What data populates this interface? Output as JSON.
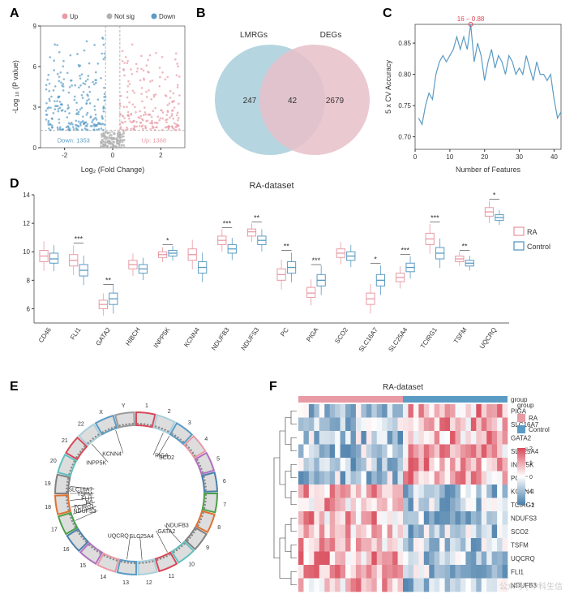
{
  "colors": {
    "up": "#e89aa5",
    "down": "#5a9bc4",
    "notsig": "#b0b0b0",
    "venn_left": "#a8cedb",
    "venn_right": "#e8c0c8",
    "venn_overlap": "#b8a8b8",
    "ra": "#e89aa5",
    "control": "#5a9bc4",
    "line": "#5a9bc4",
    "axis": "#333333",
    "grid": "#e8e8e8",
    "heat_high": "#d94858",
    "heat_mid": "#ffffff",
    "heat_low": "#4a7fab"
  },
  "panelA": {
    "label": "A",
    "xlabel": "Log₂ (Fold Change)",
    "ylabel": "-Log ₁₀ (P value)",
    "legend": [
      "Up",
      "Not sig",
      "Down"
    ],
    "xlim": [
      -3,
      3
    ],
    "ylim": [
      0,
      9
    ],
    "xticks": [
      -2,
      0,
      2
    ],
    "yticks": [
      0,
      3,
      6,
      9
    ],
    "down_label": "Down: 1353",
    "up_label": "Up: 1368",
    "vcut": 0.3,
    "hcut": 1.3
  },
  "panelB": {
    "label": "B",
    "left_title": "LMRGs",
    "right_title": "DEGs",
    "left_only": 247,
    "overlap": 42,
    "right_only": 2679
  },
  "panelC": {
    "label": "C",
    "xlabel": "Number of Features",
    "ylabel": "5 x CV Accuracy",
    "best_label": "16 − 0.88",
    "xlim": [
      0,
      42
    ],
    "ylim": [
      0.68,
      0.88
    ],
    "xticks": [
      0,
      10,
      20,
      30,
      40
    ],
    "yticks": [
      0.7,
      0.75,
      0.8,
      0.85
    ],
    "series_x": [
      1,
      2,
      3,
      4,
      5,
      6,
      7,
      8,
      9,
      10,
      11,
      12,
      13,
      14,
      15,
      16,
      17,
      18,
      19,
      20,
      21,
      22,
      23,
      24,
      25,
      26,
      27,
      28,
      29,
      30,
      31,
      32,
      33,
      34,
      35,
      36,
      37,
      38,
      39,
      40,
      41,
      42
    ],
    "series_y": [
      0.73,
      0.72,
      0.75,
      0.77,
      0.76,
      0.8,
      0.82,
      0.83,
      0.82,
      0.83,
      0.84,
      0.86,
      0.84,
      0.86,
      0.84,
      0.88,
      0.82,
      0.85,
      0.83,
      0.79,
      0.82,
      0.84,
      0.81,
      0.83,
      0.82,
      0.8,
      0.83,
      0.82,
      0.8,
      0.81,
      0.8,
      0.83,
      0.81,
      0.79,
      0.82,
      0.8,
      0.8,
      0.79,
      0.8,
      0.76,
      0.73,
      0.74
    ]
  },
  "panelD": {
    "label": "D",
    "title": "RA-dataset",
    "ylim": [
      5,
      14
    ],
    "yticks": [
      6,
      8,
      10,
      12,
      14
    ],
    "legend": [
      "RA",
      "Control"
    ],
    "genes": [
      "CD46",
      "FLI1",
      "GATA2",
      "HIBCH",
      "INPP5K",
      "KCNN4",
      "NDUFB3",
      "NDUFS3",
      "PC",
      "PIGA",
      "SCO2",
      "SLC16A7",
      "SLC25A4",
      "TCIRG1",
      "TSFM",
      "UQCRQ"
    ],
    "ra_q1": [
      9.3,
      9.0,
      6.0,
      8.8,
      9.6,
      9.4,
      10.5,
      11.1,
      8.0,
      6.8,
      9.6,
      6.3,
      7.9,
      10.5,
      9.3,
      12.5
    ],
    "ra_med": [
      9.7,
      9.4,
      6.3,
      9.1,
      9.8,
      9.8,
      10.8,
      11.4,
      8.4,
      7.1,
      9.9,
      6.7,
      8.2,
      10.9,
      9.5,
      12.8
    ],
    "ra_q3": [
      10.1,
      9.8,
      6.6,
      9.4,
      10.0,
      10.2,
      11.1,
      11.6,
      8.8,
      7.5,
      10.2,
      7.1,
      8.5,
      11.3,
      9.7,
      13.1
    ],
    "ct_q1": [
      9.2,
      8.3,
      6.3,
      8.5,
      9.7,
      8.5,
      9.9,
      10.5,
      8.5,
      7.6,
      9.4,
      7.6,
      8.6,
      9.5,
      9.0,
      12.2
    ],
    "ct_med": [
      9.5,
      8.7,
      6.7,
      8.8,
      9.9,
      8.9,
      10.2,
      10.8,
      8.9,
      8.0,
      9.7,
      8.0,
      8.9,
      9.9,
      9.2,
      12.4
    ],
    "ct_q3": [
      9.9,
      9.1,
      7.1,
      9.1,
      10.1,
      9.3,
      10.5,
      11.1,
      9.3,
      8.4,
      10.0,
      8.4,
      9.2,
      10.3,
      9.4,
      12.6
    ],
    "sig": [
      "",
      "***",
      "**",
      "",
      "*",
      "",
      "***",
      "**",
      "**",
      "***",
      "",
      "*",
      "***",
      "***",
      "**",
      "*"
    ]
  },
  "panelE": {
    "label": "E",
    "genes": [
      {
        "label": "PIGA",
        "angle": 66
      },
      {
        "label": "SCO2",
        "angle": 60
      },
      {
        "label": "KCNN4",
        "angle": 108
      },
      {
        "label": "INPP5K",
        "angle": 132
      },
      {
        "label": "NDUFB3",
        "angle": 312
      },
      {
        "label": "GATA2",
        "angle": 298
      },
      {
        "label": "SLC25A4",
        "angle": 275
      },
      {
        "label": "UQCRQ",
        "angle": 262
      },
      {
        "label": "SLC16A7",
        "angle": 174
      },
      {
        "label": "TSFM",
        "angle": 180
      },
      {
        "label": "FLI1",
        "angle": 186
      },
      {
        "label": "PC",
        "angle": 192
      },
      {
        "label": "TCIRG1",
        "angle": 198
      },
      {
        "label": "NDUFS3",
        "angle": 204
      }
    ],
    "chroms": [
      "1",
      "2",
      "3",
      "4",
      "5",
      "6",
      "7",
      "8",
      "9",
      "10",
      "11",
      "12",
      "13",
      "14",
      "15",
      "16",
      "17",
      "18",
      "19",
      "20",
      "21",
      "22",
      "X",
      "Y"
    ],
    "chrom_angles": [
      88,
      70,
      52,
      36,
      20,
      4,
      -12,
      -26,
      -40,
      -54,
      -66,
      -78,
      -90,
      -102,
      -112,
      -122,
      -132,
      -142,
      -150,
      -158,
      -166,
      268,
      258,
      250
    ]
  },
  "panelF": {
    "label": "F",
    "title": "RA-dataset",
    "group_label": "group",
    "legend_title": "group",
    "legend_items": [
      "RA",
      "Control"
    ],
    "scale_title": "",
    "scale_ticks": [
      2,
      1,
      0,
      -1,
      -2
    ],
    "genes": [
      "PIGA",
      "SLC16A7",
      "GATA2",
      "SLC25A4",
      "INPP5K",
      "PC",
      "KCNN4",
      "TCIRG1",
      "NDUFS3",
      "SCO2",
      "TSFM",
      "UQCRQ",
      "FLI1",
      "NDUFB3"
    ],
    "ncols": 40,
    "ra_cols": 20
  },
  "watermark": "公众号 | 中科生信"
}
